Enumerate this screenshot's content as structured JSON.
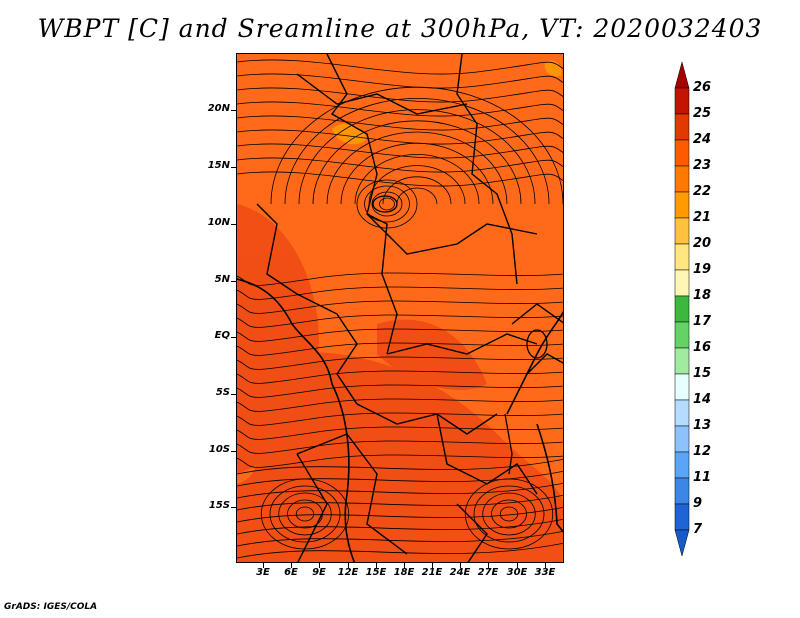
{
  "title": "WBPT [C] and Sreamline at 300hPa, VT: 2020032403",
  "credit": "GrADS: IGES/COLA",
  "lat_labels": [
    "20N",
    "15N",
    "10N",
    "5N",
    "EQ",
    "5S",
    "10S",
    "15S"
  ],
  "lon_labels": [
    "3E",
    "6E",
    "9E",
    "12E",
    "15E",
    "18E",
    "21E",
    "24E",
    "27E",
    "30E",
    "33E"
  ],
  "colorbar": {
    "labels": [
      "26",
      "25",
      "24",
      "23",
      "22",
      "21",
      "20",
      "19",
      "18",
      "17",
      "16",
      "15",
      "14",
      "13",
      "12",
      "11",
      "9",
      "7"
    ],
    "colors": [
      "#a50000",
      "#c31400",
      "#e03a00",
      "#ff5a00",
      "#ff7800",
      "#ff9a00",
      "#ffc240",
      "#ffe680",
      "#fff5b4",
      "#3cb93c",
      "#64d264",
      "#a0eba0",
      "#e6ffff",
      "#b4dcff",
      "#8cc3ff",
      "#5aa5f5",
      "#3c87e6",
      "#1e64d2",
      "#145ac8"
    ]
  },
  "map": {
    "field": "WBPT",
    "level": "300hPa",
    "background_color": "#ff6a1a",
    "warm_color": "#ee4a14",
    "cool_color": "#ffa020"
  }
}
